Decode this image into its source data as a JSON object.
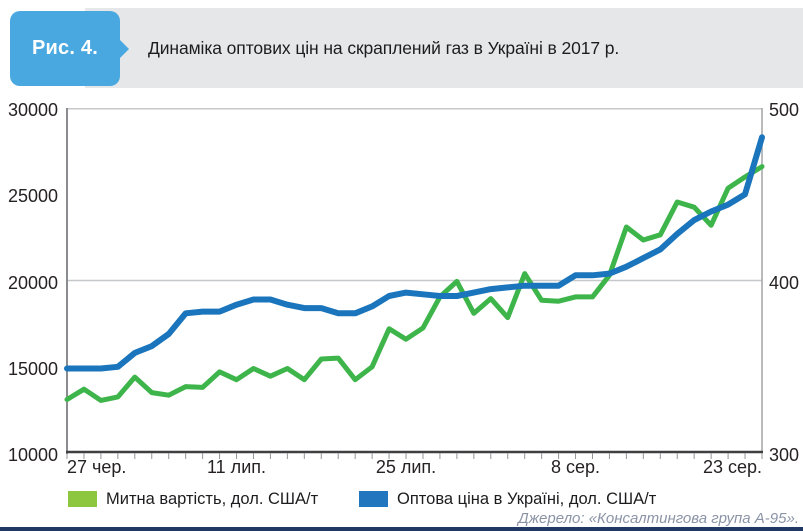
{
  "header": {
    "badge": "Рис. 4.",
    "title": "Динаміка оптових цін на скраплений газ в Україні в 2017 р."
  },
  "chart_data": {
    "type": "line",
    "title": "Динаміка оптових цін на скраплений газ в Україні в 2017 р.",
    "n_points": 42,
    "x_tick_labels": [
      {
        "label": "27 чер.",
        "index": 0,
        "align": "start"
      },
      {
        "label": "11 лип.",
        "index": 10,
        "align": "center"
      },
      {
        "label": "25 лип.",
        "index": 20,
        "align": "center"
      },
      {
        "label": "8 сер.",
        "index": 30,
        "align": "center"
      },
      {
        "label": "23 сер.",
        "index": 41,
        "align": "end"
      }
    ],
    "left_axis": {
      "min": 10000,
      "max": 30000,
      "ticks": [
        30000,
        25000,
        20000,
        15000,
        10000
      ]
    },
    "right_axis": {
      "min": 300,
      "max": 500,
      "ticks": [
        500,
        400,
        300
      ]
    },
    "gridlines_at_left_values": [
      20000
    ],
    "legend_position": "bottom",
    "series": [
      {
        "name": "Митна вартість, дол. США/т",
        "axis": "left",
        "color": "#3eb54a",
        "values": [
          13100,
          13700,
          13050,
          13250,
          14400,
          13500,
          13350,
          13850,
          13800,
          14700,
          14250,
          14900,
          14450,
          14900,
          14250,
          15450,
          15500,
          14250,
          15000,
          17200,
          16600,
          17250,
          19050,
          19950,
          18100,
          18950,
          17850,
          20400,
          18850,
          18800,
          19050,
          19050,
          20300,
          23100,
          22350,
          22650,
          24550,
          24250,
          23200,
          25350,
          26000,
          26600
        ]
      },
      {
        "name": "Оптова ціна в Україні, дол. США/т",
        "axis": "right",
        "color": "#1b75bc",
        "values": [
          349,
          349,
          349,
          350,
          358,
          362,
          369,
          381,
          382,
          382,
          386,
          389,
          389,
          386,
          384,
          384,
          381,
          381,
          385,
          391,
          393,
          392,
          391,
          391,
          393,
          395,
          396,
          397,
          397,
          397,
          403,
          403,
          404,
          408,
          413,
          418,
          427,
          435,
          440,
          444,
          450,
          483
        ]
      }
    ]
  },
  "legend": {
    "customs": "Митна вартість, дол. США/т",
    "wholesale": "Оптова ціна в Україні, дол. США/т"
  },
  "footer": {
    "source": "Джерело: «Консалтингова група А-95»."
  },
  "colors": {
    "badge_blue": "#4aa8e0",
    "header_bar_gray": "#e6e7e8",
    "green_line": "#3eb54a",
    "green_swatch": "#8dc63f",
    "blue_line": "#1b75bc",
    "blue_swatch": "#2176bd",
    "grid_gray": "#c6c8ca",
    "source_text": "#8a93a6",
    "bottom_rule_navy": "#1f3864"
  }
}
